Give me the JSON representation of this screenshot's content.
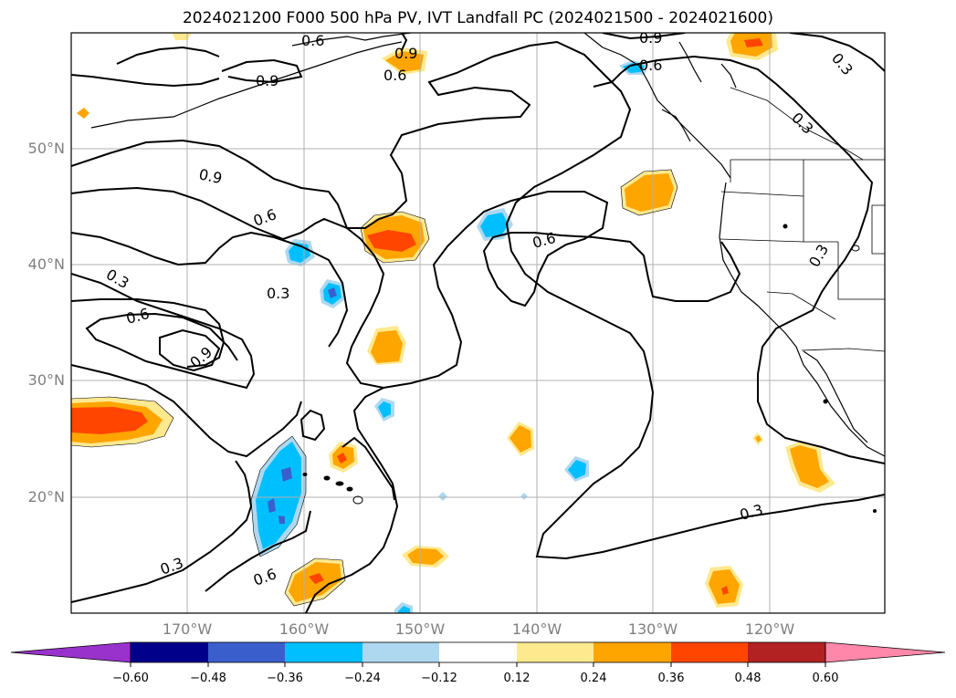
{
  "title": "2024021200 F000 500 hPa PV, IVT Landfall PC (2024021500 - 2024021600)",
  "lat_labels": [
    "50°N",
    "40°N",
    "30°N",
    "20°N"
  ],
  "lon_labels": [
    "170°W",
    "160°W",
    "150°W",
    "140°W",
    "130°W",
    "120°W"
  ],
  "contour_labels": [
    "0.9",
    "0.6",
    "0.3"
  ],
  "colorbar": {
    "ticks": [
      "−0.60",
      "−0.48",
      "−0.36",
      "−0.24",
      "−0.12",
      "0.12",
      "0.24",
      "0.36",
      "0.48",
      "0.60"
    ],
    "colors": [
      "#9932cc",
      "#00008b",
      "#3a5fcd",
      "#00bfff",
      "#add8f0",
      "#ffffff",
      "#ffe98f",
      "#ffa500",
      "#ff4500",
      "#b22222",
      "#ff88aa"
    ]
  },
  "colors": {
    "contour": "#000000",
    "coastline": "#000000",
    "gridline": "#b0b0b0",
    "axis_label": "#7f7f7f"
  }
}
